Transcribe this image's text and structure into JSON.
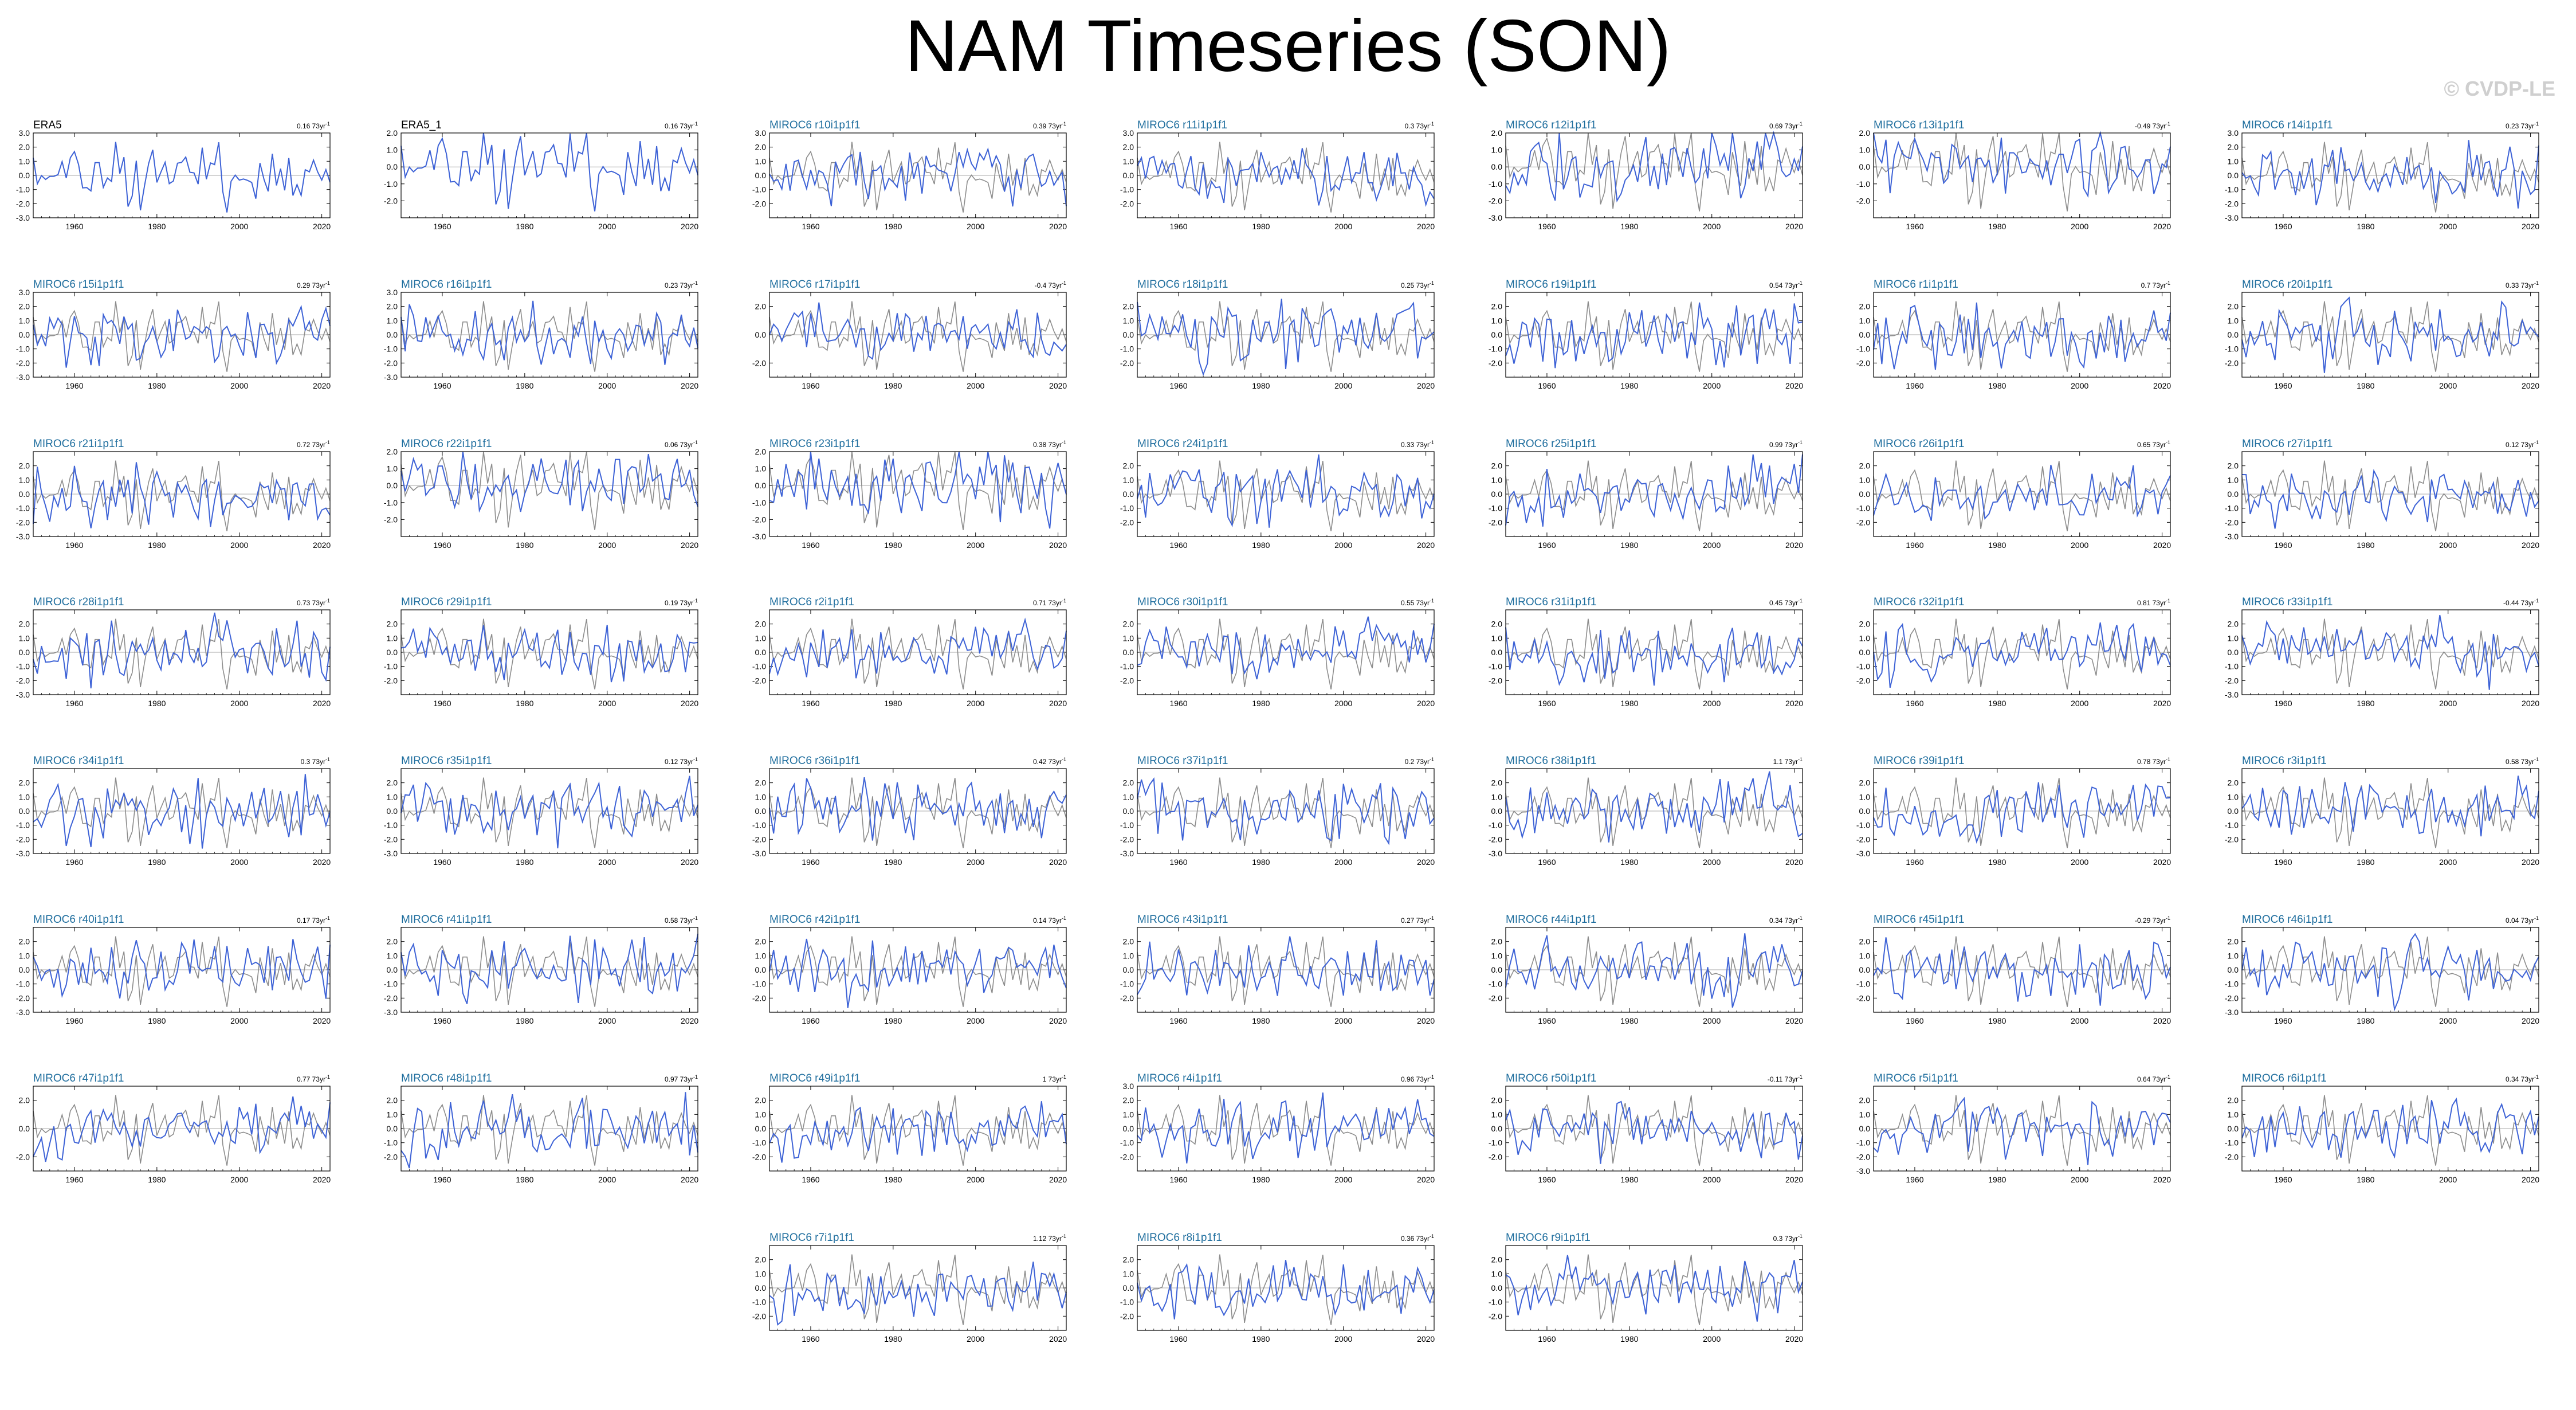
{
  "title": "NAM Timeseries (SON)",
  "watermark": "© CVDP-LE",
  "colors": {
    "model_line": "#3d62d6",
    "obs_line": "#8c8c8c",
    "obs_title": "#000000",
    "model_title": "#1f6e9e",
    "zero_line": "#aaaaaa"
  },
  "chart_data": {
    "type": "line",
    "description_units": "standardized NAM index vs year",
    "x_tick_labels": [
      "1960",
      "1980",
      "2000",
      "2020"
    ],
    "x_range": [
      1950,
      2022
    ],
    "trend_unit": "73yr",
    "panels": [
      {
        "title": "ERA5",
        "trend": "0.16",
        "ylim": [
          -3.0,
          3.0
        ],
        "yticks": [
          "3.0",
          "2.0",
          "1.0",
          "0.0",
          "-1.0",
          "-2.0",
          "-3.0"
        ],
        "obs": true
      },
      {
        "title": "ERA5_1",
        "trend": "0.16",
        "ylim": [
          -3.0,
          2.0
        ],
        "yticks": [
          "2.0",
          "1.0",
          "0.0",
          "-1.0",
          "-2.0"
        ],
        "obs": true
      },
      {
        "title": "MIROC6 r10i1p1f1",
        "trend": "0.39",
        "ylim": [
          -3.0,
          3.0
        ],
        "yticks": [
          "3.0",
          "2.0",
          "1.0",
          "0.0",
          "-1.0",
          "-2.0"
        ]
      },
      {
        "title": "MIROC6 r11i1p1f1",
        "trend": "0.3",
        "ylim": [
          -3.0,
          3.0
        ],
        "yticks": [
          "3.0",
          "2.0",
          "1.0",
          "0.0",
          "-1.0",
          "-2.0"
        ]
      },
      {
        "title": "MIROC6 r12i1p1f1",
        "trend": "0.69",
        "ylim": [
          -3.0,
          2.0
        ],
        "yticks": [
          "2.0",
          "1.0",
          "0.0",
          "-1.0",
          "-2.0",
          "-3.0"
        ]
      },
      {
        "title": "MIROC6 r13i1p1f1",
        "trend": "-0.49",
        "ylim": [
          -3.0,
          2.0
        ],
        "yticks": [
          "2.0",
          "1.0",
          "0.0",
          "-1.0",
          "-2.0"
        ]
      },
      {
        "title": "MIROC6 r14i1p1f1",
        "trend": "0.23",
        "ylim": [
          -3.0,
          3.0
        ],
        "yticks": [
          "3.0",
          "2.0",
          "1.0",
          "0.0",
          "-1.0",
          "-2.0",
          "-3.0"
        ]
      },
      {
        "title": "MIROC6 r15i1p1f1",
        "trend": "0.29",
        "ylim": [
          -3.0,
          3.0
        ],
        "yticks": [
          "3.0",
          "2.0",
          "1.0",
          "0.0",
          "-1.0",
          "-2.0",
          "-3.0"
        ]
      },
      {
        "title": "MIROC6 r16i1p1f1",
        "trend": "0.23",
        "ylim": [
          -3.0,
          3.0
        ],
        "yticks": [
          "3.0",
          "2.0",
          "1.0",
          "0.0",
          "-1.0",
          "-2.0",
          "-3.0"
        ]
      },
      {
        "title": "MIROC6 r17i1p1f1",
        "trend": "-0.4",
        "ylim": [
          -3.0,
          3.0
        ],
        "yticks": [
          "2.0",
          "0.0",
          "-2.0"
        ]
      },
      {
        "title": "MIROC6 r18i1p1f1",
        "trend": "0.25",
        "ylim": [
          -3.0,
          3.0
        ],
        "yticks": [
          "2.0",
          "1.0",
          "0.0",
          "-1.0",
          "-2.0"
        ]
      },
      {
        "title": "MIROC6 r19i1p1f1",
        "trend": "0.54",
        "ylim": [
          -3.0,
          3.0
        ],
        "yticks": [
          "2.0",
          "1.0",
          "0.0",
          "-1.0",
          "-2.0"
        ]
      },
      {
        "title": "MIROC6 r1i1p1f1",
        "trend": "0.7",
        "ylim": [
          -3.0,
          3.0
        ],
        "yticks": [
          "2.0",
          "1.0",
          "0.0",
          "-1.0",
          "-2.0"
        ]
      },
      {
        "title": "MIROC6 r20i1p1f1",
        "trend": "0.33",
        "ylim": [
          -3.0,
          3.0
        ],
        "yticks": [
          "2.0",
          "1.0",
          "0.0",
          "-1.0",
          "-2.0"
        ]
      },
      {
        "title": "MIROC6 r21i1p1f1",
        "trend": "0.72",
        "ylim": [
          -3.0,
          3.0
        ],
        "yticks": [
          "2.0",
          "1.0",
          "0.0",
          "-1.0",
          "-2.0",
          "-3.0"
        ]
      },
      {
        "title": "MIROC6 r22i1p1f1",
        "trend": "0.06",
        "ylim": [
          -3.0,
          2.0
        ],
        "yticks": [
          "2.0",
          "1.0",
          "0.0",
          "-1.0",
          "-2.0"
        ]
      },
      {
        "title": "MIROC6 r23i1p1f1",
        "trend": "0.38",
        "ylim": [
          -3.0,
          2.0
        ],
        "yticks": [
          "2.0",
          "1.0",
          "0.0",
          "-1.0",
          "-2.0",
          "-3.0"
        ]
      },
      {
        "title": "MIROC6 r24i1p1f1",
        "trend": "0.33",
        "ylim": [
          -3.0,
          3.0
        ],
        "yticks": [
          "2.0",
          "1.0",
          "0.0",
          "-1.0",
          "-2.0"
        ]
      },
      {
        "title": "MIROC6 r25i1p1f1",
        "trend": "0.99",
        "ylim": [
          -3.0,
          3.0
        ],
        "yticks": [
          "2.0",
          "1.0",
          "0.0",
          "-1.0",
          "-2.0"
        ]
      },
      {
        "title": "MIROC6 r26i1p1f1",
        "trend": "0.65",
        "ylim": [
          -3.0,
          3.0
        ],
        "yticks": [
          "2.0",
          "1.0",
          "0.0",
          "-1.0",
          "-2.0"
        ]
      },
      {
        "title": "MIROC6 r27i1p1f1",
        "trend": "0.12",
        "ylim": [
          -3.0,
          3.0
        ],
        "yticks": [
          "2.0",
          "1.0",
          "0.0",
          "-1.0",
          "-2.0",
          "-3.0"
        ]
      },
      {
        "title": "MIROC6 r28i1p1f1",
        "trend": "0.73",
        "ylim": [
          -3.0,
          3.0
        ],
        "yticks": [
          "2.0",
          "1.0",
          "0.0",
          "-1.0",
          "-2.0",
          "-3.0"
        ]
      },
      {
        "title": "MIROC6 r29i1p1f1",
        "trend": "0.19",
        "ylim": [
          -3.0,
          3.0
        ],
        "yticks": [
          "2.0",
          "1.0",
          "0.0",
          "-1.0",
          "-2.0"
        ]
      },
      {
        "title": "MIROC6 r2i1p1f1",
        "trend": "0.71",
        "ylim": [
          -3.0,
          3.0
        ],
        "yticks": [
          "2.0",
          "1.0",
          "0.0",
          "-1.0",
          "-2.0"
        ]
      },
      {
        "title": "MIROC6 r30i1p1f1",
        "trend": "0.55",
        "ylim": [
          -3.0,
          3.0
        ],
        "yticks": [
          "2.0",
          "1.0",
          "0.0",
          "-1.0",
          "-2.0"
        ]
      },
      {
        "title": "MIROC6 r31i1p1f1",
        "trend": "0.45",
        "ylim": [
          -3.0,
          3.0
        ],
        "yticks": [
          "2.0",
          "1.0",
          "0.0",
          "-1.0",
          "-2.0"
        ]
      },
      {
        "title": "MIROC6 r32i1p1f1",
        "trend": "0.81",
        "ylim": [
          -3.0,
          3.0
        ],
        "yticks": [
          "2.0",
          "1.0",
          "0.0",
          "-1.0",
          "-2.0"
        ]
      },
      {
        "title": "MIROC6 r33i1p1f1",
        "trend": "-0.44",
        "ylim": [
          -3.0,
          3.0
        ],
        "yticks": [
          "2.0",
          "1.0",
          "0.0",
          "-1.0",
          "-2.0",
          "-3.0"
        ]
      },
      {
        "title": "MIROC6 r34i1p1f1",
        "trend": "0.3",
        "ylim": [
          -3.0,
          3.0
        ],
        "yticks": [
          "2.0",
          "1.0",
          "0.0",
          "-1.0",
          "-2.0",
          "-3.0"
        ]
      },
      {
        "title": "MIROC6 r35i1p1f1",
        "trend": "0.12",
        "ylim": [
          -3.0,
          3.0
        ],
        "yticks": [
          "2.0",
          "1.0",
          "0.0",
          "-1.0",
          "-2.0",
          "-3.0"
        ]
      },
      {
        "title": "MIROC6 r36i1p1f1",
        "trend": "0.42",
        "ylim": [
          -3.0,
          3.0
        ],
        "yticks": [
          "2.0",
          "1.0",
          "0.0",
          "-1.0",
          "-2.0",
          "-3.0"
        ]
      },
      {
        "title": "MIROC6 r37i1p1f1",
        "trend": "0.2",
        "ylim": [
          -3.0,
          3.0
        ],
        "yticks": [
          "2.0",
          "1.0",
          "0.0",
          "-1.0",
          "-2.0",
          "-3.0"
        ]
      },
      {
        "title": "MIROC6 r38i1p1f1",
        "trend": "1.1",
        "ylim": [
          -3.0,
          3.0
        ],
        "yticks": [
          "2.0",
          "1.0",
          "0.0",
          "-1.0",
          "-2.0",
          "-3.0"
        ]
      },
      {
        "title": "MIROC6 r39i1p1f1",
        "trend": "0.78",
        "ylim": [
          -3.0,
          3.0
        ],
        "yticks": [
          "2.0",
          "1.0",
          "0.0",
          "-1.0",
          "-2.0",
          "-3.0"
        ]
      },
      {
        "title": "MIROC6 r3i1p1f1",
        "trend": "0.58",
        "ylim": [
          -3.0,
          3.0
        ],
        "yticks": [
          "2.0",
          "1.0",
          "0.0",
          "-1.0",
          "-2.0"
        ]
      },
      {
        "title": "MIROC6 r40i1p1f1",
        "trend": "0.17",
        "ylim": [
          -3.0,
          3.0
        ],
        "yticks": [
          "2.0",
          "1.0",
          "0.0",
          "-1.0",
          "-2.0",
          "-3.0"
        ]
      },
      {
        "title": "MIROC6 r41i1p1f1",
        "trend": "0.58",
        "ylim": [
          -3.0,
          3.0
        ],
        "yticks": [
          "2.0",
          "1.0",
          "0.0",
          "-1.0",
          "-2.0",
          "-3.0"
        ]
      },
      {
        "title": "MIROC6 r42i1p1f1",
        "trend": "0.14",
        "ylim": [
          -3.0,
          3.0
        ],
        "yticks": [
          "2.0",
          "1.0",
          "0.0",
          "-1.0",
          "-2.0"
        ]
      },
      {
        "title": "MIROC6 r43i1p1f1",
        "trend": "0.27",
        "ylim": [
          -3.0,
          3.0
        ],
        "yticks": [
          "2.0",
          "1.0",
          "0.0",
          "-1.0",
          "-2.0"
        ]
      },
      {
        "title": "MIROC6 r44i1p1f1",
        "trend": "0.34",
        "ylim": [
          -3.0,
          3.0
        ],
        "yticks": [
          "2.0",
          "1.0",
          "0.0",
          "-1.0",
          "-2.0"
        ]
      },
      {
        "title": "MIROC6 r45i1p1f1",
        "trend": "-0.29",
        "ylim": [
          -3.0,
          3.0
        ],
        "yticks": [
          "2.0",
          "1.0",
          "0.0",
          "-1.0",
          "-2.0"
        ]
      },
      {
        "title": "MIROC6 r46i1p1f1",
        "trend": "0.04",
        "ylim": [
          -3.0,
          3.0
        ],
        "yticks": [
          "2.0",
          "1.0",
          "0.0",
          "-1.0",
          "-2.0",
          "-3.0"
        ]
      },
      {
        "title": "MIROC6 r47i1p1f1",
        "trend": "0.77",
        "ylim": [
          -3.0,
          3.0
        ],
        "yticks": [
          "2.0",
          "0.0",
          "-2.0"
        ]
      },
      {
        "title": "MIROC6 r48i1p1f1",
        "trend": "0.97",
        "ylim": [
          -3.0,
          3.0
        ],
        "yticks": [
          "2.0",
          "1.0",
          "0.0",
          "-1.0",
          "-2.0"
        ]
      },
      {
        "title": "MIROC6 r49i1p1f1",
        "trend": "1",
        "ylim": [
          -3.0,
          3.0
        ],
        "yticks": [
          "2.0",
          "1.0",
          "0.0",
          "-1.0",
          "-2.0"
        ]
      },
      {
        "title": "MIROC6 r4i1p1f1",
        "trend": "0.96",
        "ylim": [
          -3.0,
          3.0
        ],
        "yticks": [
          "3.0",
          "2.0",
          "1.0",
          "0.0",
          "-1.0",
          "-2.0"
        ]
      },
      {
        "title": "MIROC6 r50i1p1f1",
        "trend": "-0.11",
        "ylim": [
          -3.0,
          3.0
        ],
        "yticks": [
          "2.0",
          "1.0",
          "0.0",
          "-1.0",
          "-2.0"
        ]
      },
      {
        "title": "MIROC6 r5i1p1f1",
        "trend": "0.64",
        "ylim": [
          -3.0,
          3.0
        ],
        "yticks": [
          "2.0",
          "1.0",
          "0.0",
          "-1.0",
          "-2.0",
          "-3.0"
        ]
      },
      {
        "title": "MIROC6 r6i1p1f1",
        "trend": "0.34",
        "ylim": [
          -3.0,
          3.0
        ],
        "yticks": [
          "2.0",
          "1.0",
          "0.0",
          "-1.0",
          "-2.0"
        ]
      },
      {
        "title": "MIROC6 r7i1p1f1",
        "trend": "1.12",
        "ylim": [
          -3.0,
          3.0
        ],
        "yticks": [
          "2.0",
          "1.0",
          "0.0",
          "-1.0",
          "-2.0"
        ]
      },
      {
        "title": "MIROC6 r8i1p1f1",
        "trend": "0.36",
        "ylim": [
          -3.0,
          3.0
        ],
        "yticks": [
          "2.0",
          "1.0",
          "0.0",
          "-1.0",
          "-2.0"
        ]
      },
      {
        "title": "MIROC6 r9i1p1f1",
        "trend": "0.3",
        "ylim": [
          -3.0,
          3.0
        ],
        "yticks": [
          "2.0",
          "1.0",
          "0.0",
          "-1.0",
          "-2.0"
        ]
      }
    ]
  }
}
